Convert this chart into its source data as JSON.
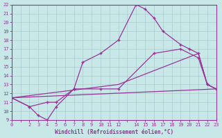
{
  "xlabel": "Windchill (Refroidissement éolien,°C)",
  "background_color": "#c8e8e8",
  "grid_color": "#aacccc",
  "line_color": "#993399",
  "xlim": [
    0,
    23
  ],
  "ylim": [
    9,
    22
  ],
  "xticks": [
    0,
    1,
    2,
    3,
    4,
    5,
    6,
    7,
    8,
    9,
    10,
    11,
    12,
    13,
    14,
    15,
    16,
    17,
    18,
    19,
    20,
    21,
    22,
    23
  ],
  "xtick_labels": [
    "0",
    "",
    "2",
    "3",
    "4",
    "5",
    "6",
    "7",
    "8",
    "9",
    "10",
    "11",
    "12",
    "",
    "14",
    "15",
    "16",
    "17",
    "18",
    "19",
    "20",
    "21",
    "22",
    "23"
  ],
  "yticks": [
    9,
    10,
    11,
    12,
    13,
    14,
    15,
    16,
    17,
    18,
    19,
    20,
    21,
    22
  ],
  "line1_x": [
    0,
    2,
    3,
    4,
    5,
    7,
    8,
    10,
    12,
    14,
    15,
    16,
    17,
    19,
    20,
    21,
    22,
    23
  ],
  "line1_y": [
    11.5,
    10.5,
    9.5,
    9.0,
    10.5,
    12.5,
    15.5,
    16.5,
    18.0,
    22.0,
    21.5,
    20.5,
    19.0,
    17.5,
    17.0,
    16.5,
    13.0,
    12.5
  ],
  "line2_x": [
    0,
    2,
    4,
    5,
    7,
    10,
    12,
    16,
    19,
    21,
    22,
    23
  ],
  "line2_y": [
    11.5,
    10.5,
    11.0,
    11.0,
    12.5,
    12.5,
    12.5,
    16.5,
    17.0,
    16.0,
    13.0,
    12.5
  ],
  "line3_x": [
    0,
    23
  ],
  "line3_y": [
    11.5,
    12.5
  ],
  "line4_x": [
    0,
    12,
    21,
    22,
    23
  ],
  "line4_y": [
    11.5,
    13.0,
    16.5,
    13.0,
    12.5
  ]
}
